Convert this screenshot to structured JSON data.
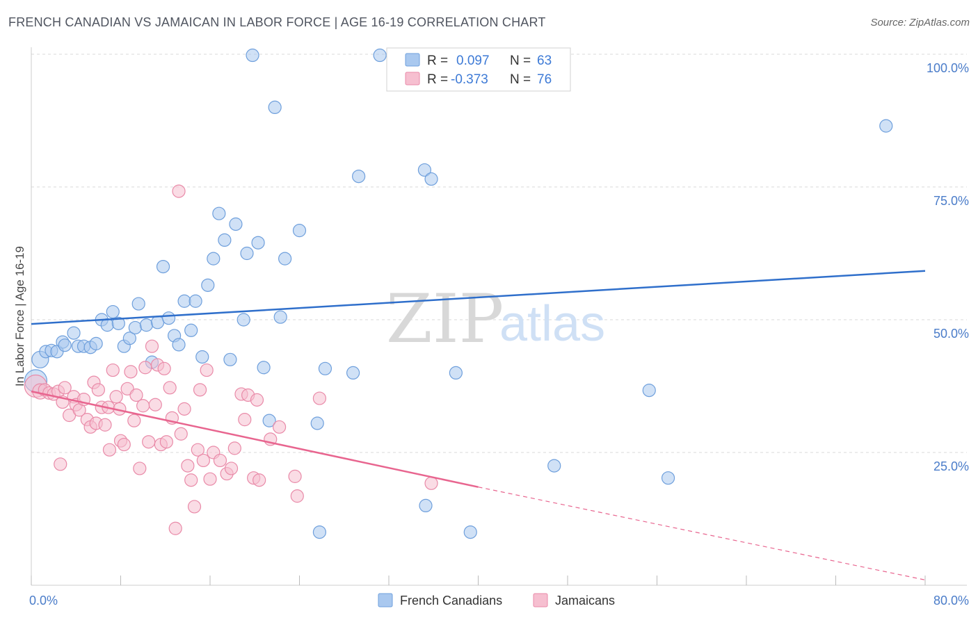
{
  "header": {
    "title": "FRENCH CANADIAN VS JAMAICAN IN LABOR FORCE | AGE 16-19 CORRELATION CHART",
    "source": "Source: ZipAtlas.com"
  },
  "watermark": {
    "part1": "ZIP",
    "part2": "atlas"
  },
  "colors": {
    "blue_fill": "#a9c8ef",
    "blue_stroke": "#6e9fdc",
    "blue_line": "#2f6fcb",
    "pink_fill": "#f6bfd0",
    "pink_stroke": "#e98aa8",
    "pink_line": "#e8658f",
    "tick_text": "#4a7cc9",
    "grid": "#d9d9d9"
  },
  "legend": {
    "rows": [
      {
        "r_label": "R =",
        "r_value": "0.097",
        "n_label": "N =",
        "n_value": "63"
      },
      {
        "r_label": "R =",
        "r_value": "-0.373",
        "n_label": "N =",
        "n_value": "76"
      }
    ]
  },
  "bottom_legend": {
    "items": [
      "French Canadians",
      "Jamaicans"
    ]
  },
  "chart_data": {
    "type": "scatter",
    "ylabel": "In Labor Force | Age 16-19",
    "xlim": [
      0,
      80
    ],
    "ylim": [
      0,
      100
    ],
    "x_tick_labels": [
      {
        "value": 0,
        "label": "0.0%"
      },
      {
        "value": 80,
        "label": "80.0%"
      }
    ],
    "y_tick_labels": [
      {
        "value": 100,
        "label": "100.0%"
      },
      {
        "value": 75,
        "label": "75.0%"
      },
      {
        "value": 50,
        "label": "50.0%"
      },
      {
        "value": 25,
        "label": "25.0%"
      }
    ],
    "x_minor_ticks": [
      0,
      8,
      16,
      24,
      32,
      40,
      48,
      56,
      64,
      72,
      80
    ],
    "grid": true,
    "series": [
      {
        "name": "French Canadians",
        "trend": {
          "x": [
            0,
            80
          ],
          "y": [
            49.2,
            59.2
          ]
        },
        "points": [
          [
            0.4,
            38.5,
            16
          ],
          [
            0.8,
            42.5,
            12
          ],
          [
            1.3,
            44.0,
            9
          ],
          [
            1.8,
            44.2,
            9
          ],
          [
            2.3,
            44.0,
            9
          ],
          [
            2.8,
            45.8,
            9
          ],
          [
            3.0,
            45.2,
            9
          ],
          [
            3.8,
            47.5,
            9
          ],
          [
            4.2,
            45.0,
            9
          ],
          [
            4.7,
            45.0,
            9
          ],
          [
            5.3,
            44.8,
            9
          ],
          [
            5.8,
            45.5,
            9
          ],
          [
            6.3,
            50.0,
            9
          ],
          [
            6.8,
            49.0,
            9
          ],
          [
            7.3,
            51.5,
            9
          ],
          [
            7.8,
            49.3,
            9
          ],
          [
            8.3,
            45.0,
            9
          ],
          [
            8.8,
            46.5,
            9
          ],
          [
            9.3,
            48.5,
            9
          ],
          [
            9.6,
            53.0,
            9
          ],
          [
            10.3,
            49.0,
            9
          ],
          [
            10.8,
            42.0,
            9
          ],
          [
            11.3,
            49.5,
            9
          ],
          [
            11.8,
            60.0,
            9
          ],
          [
            12.3,
            50.3,
            9
          ],
          [
            12.8,
            47.0,
            9
          ],
          [
            13.2,
            45.3,
            9
          ],
          [
            13.7,
            53.5,
            9
          ],
          [
            14.3,
            48.0,
            9
          ],
          [
            14.7,
            53.5,
            9
          ],
          [
            15.3,
            43.0,
            9
          ],
          [
            15.8,
            56.5,
            9
          ],
          [
            16.3,
            61.5,
            9
          ],
          [
            16.8,
            70.0,
            9
          ],
          [
            17.3,
            65.0,
            9
          ],
          [
            17.8,
            42.5,
            9
          ],
          [
            18.3,
            68.0,
            9
          ],
          [
            19.0,
            50.0,
            9
          ],
          [
            19.3,
            62.5,
            9
          ],
          [
            19.8,
            99.8,
            9
          ],
          [
            20.3,
            64.5,
            9
          ],
          [
            20.8,
            41.0,
            9
          ],
          [
            21.3,
            31.0,
            9
          ],
          [
            21.8,
            90.0,
            9
          ],
          [
            22.3,
            50.5,
            9
          ],
          [
            22.7,
            61.5,
            9
          ],
          [
            24.0,
            66.8,
            9
          ],
          [
            25.6,
            30.5,
            9
          ],
          [
            25.8,
            10.0,
            9
          ],
          [
            26.3,
            40.8,
            9
          ],
          [
            28.8,
            40.0,
            9
          ],
          [
            29.3,
            77.0,
            9
          ],
          [
            31.2,
            99.8,
            9
          ],
          [
            35.2,
            78.2,
            9
          ],
          [
            35.8,
            76.5,
            9
          ],
          [
            35.3,
            15.0,
            9
          ],
          [
            38.0,
            40.0,
            9
          ],
          [
            39.3,
            10.0,
            9
          ],
          [
            46.8,
            22.5,
            9
          ],
          [
            55.3,
            36.7,
            9
          ],
          [
            57.0,
            20.2,
            9
          ],
          [
            76.5,
            86.5,
            9
          ],
          [
            26.6,
            44.0,
            0
          ]
        ]
      },
      {
        "name": "Jamaicans",
        "trend": {
          "x": [
            0,
            40
          ],
          "y": [
            36.5,
            18.5
          ]
        },
        "trend_dashed": {
          "x": [
            40,
            80
          ],
          "y": [
            18.5,
            1.0
          ]
        },
        "points": [
          [
            0.4,
            37.5,
            16
          ],
          [
            0.8,
            36.5,
            11
          ],
          [
            1.2,
            36.8,
            9
          ],
          [
            1.6,
            36.2,
            9
          ],
          [
            2.0,
            36.0,
            9
          ],
          [
            2.4,
            36.5,
            9
          ],
          [
            2.8,
            34.5,
            9
          ],
          [
            2.6,
            22.8,
            9
          ],
          [
            3.0,
            37.2,
            9
          ],
          [
            3.4,
            32.0,
            9
          ],
          [
            3.8,
            35.5,
            9
          ],
          [
            4.0,
            34.0,
            9
          ],
          [
            4.3,
            33.0,
            9
          ],
          [
            4.7,
            35.0,
            9
          ],
          [
            5.0,
            31.2,
            9
          ],
          [
            5.3,
            29.8,
            9
          ],
          [
            5.6,
            38.2,
            9
          ],
          [
            5.8,
            30.5,
            9
          ],
          [
            6.0,
            36.8,
            9
          ],
          [
            6.3,
            33.5,
            9
          ],
          [
            6.6,
            30.2,
            9
          ],
          [
            6.9,
            33.5,
            9
          ],
          [
            7.0,
            25.5,
            9
          ],
          [
            7.3,
            40.5,
            9
          ],
          [
            7.6,
            35.5,
            9
          ],
          [
            7.9,
            33.2,
            9
          ],
          [
            8.0,
            27.2,
            9
          ],
          [
            8.3,
            26.5,
            9
          ],
          [
            8.6,
            37.0,
            9
          ],
          [
            8.9,
            40.2,
            9
          ],
          [
            9.2,
            31.0,
            9
          ],
          [
            9.4,
            35.8,
            9
          ],
          [
            9.7,
            22.0,
            9
          ],
          [
            10.0,
            33.8,
            9
          ],
          [
            10.2,
            41.0,
            9
          ],
          [
            10.5,
            27.0,
            9
          ],
          [
            10.8,
            45.0,
            9
          ],
          [
            11.1,
            34.0,
            9
          ],
          [
            11.3,
            41.5,
            9
          ],
          [
            11.6,
            26.5,
            9
          ],
          [
            11.9,
            40.8,
            9
          ],
          [
            12.1,
            27.0,
            9
          ],
          [
            12.4,
            37.2,
            9
          ],
          [
            12.6,
            31.5,
            9
          ],
          [
            12.9,
            10.7,
            9
          ],
          [
            13.2,
            74.2,
            9
          ],
          [
            13.4,
            28.5,
            9
          ],
          [
            13.7,
            33.2,
            9
          ],
          [
            14.0,
            22.5,
            9
          ],
          [
            14.3,
            19.8,
            9
          ],
          [
            14.6,
            14.8,
            9
          ],
          [
            14.9,
            25.5,
            9
          ],
          [
            15.1,
            36.8,
            9
          ],
          [
            15.4,
            23.5,
            9
          ],
          [
            15.7,
            40.5,
            9
          ],
          [
            16.0,
            20.0,
            9
          ],
          [
            16.3,
            25.0,
            9
          ],
          [
            16.9,
            23.5,
            9
          ],
          [
            17.5,
            21.0,
            9
          ],
          [
            17.9,
            22.0,
            9
          ],
          [
            18.2,
            25.8,
            9
          ],
          [
            18.8,
            36.0,
            9
          ],
          [
            19.1,
            31.2,
            9
          ],
          [
            19.4,
            35.8,
            9
          ],
          [
            19.9,
            20.2,
            9
          ],
          [
            20.2,
            34.9,
            9
          ],
          [
            20.4,
            19.8,
            9
          ],
          [
            21.4,
            27.5,
            9
          ],
          [
            22.2,
            29.8,
            9
          ],
          [
            23.6,
            20.5,
            9
          ],
          [
            23.8,
            16.8,
            9
          ],
          [
            25.8,
            35.2,
            9
          ],
          [
            35.8,
            19.2,
            9
          ],
          [
            6.3,
            22.0,
            0
          ],
          [
            9.0,
            25.0,
            0
          ],
          [
            11.0,
            29.0,
            0
          ]
        ]
      }
    ]
  }
}
